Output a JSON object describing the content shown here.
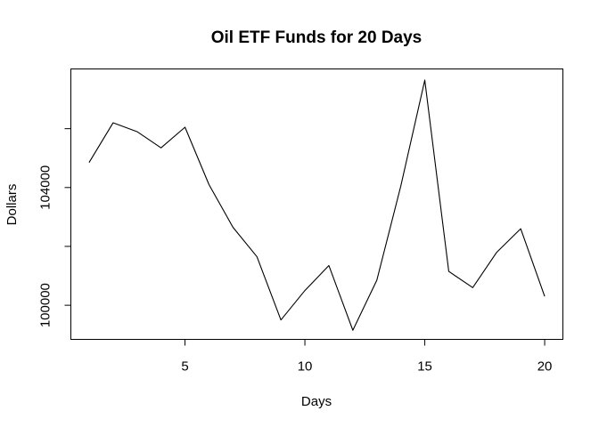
{
  "chart_data": {
    "type": "line",
    "title": "Oil ETF Funds for 20 Days",
    "xlabel": "Days",
    "ylabel": "Dollars",
    "xlim": [
      0.24,
      20.76
    ],
    "ylim": [
      98840,
      108030
    ],
    "x_ticks": [
      5,
      10,
      15,
      20
    ],
    "x_tick_labels": [
      "5",
      "10",
      "15",
      "20"
    ],
    "y_ticks": [
      100000,
      102000,
      104000,
      106000
    ],
    "y_tick_labels": [
      "100000",
      "",
      "104000",
      ""
    ],
    "grid": false,
    "series": [
      {
        "x": [
          1,
          2,
          3,
          4,
          5,
          6,
          7,
          8,
          9,
          10,
          11,
          12,
          13,
          14,
          15,
          16,
          17,
          18,
          19,
          20
        ],
        "values": [
          104850,
          106200,
          105900,
          105350,
          106050,
          104100,
          102650,
          101650,
          99500,
          100500,
          101350,
          99150,
          100850,
          104050,
          107650,
          101150,
          100600,
          101800,
          102600,
          100300
        ]
      }
    ]
  }
}
